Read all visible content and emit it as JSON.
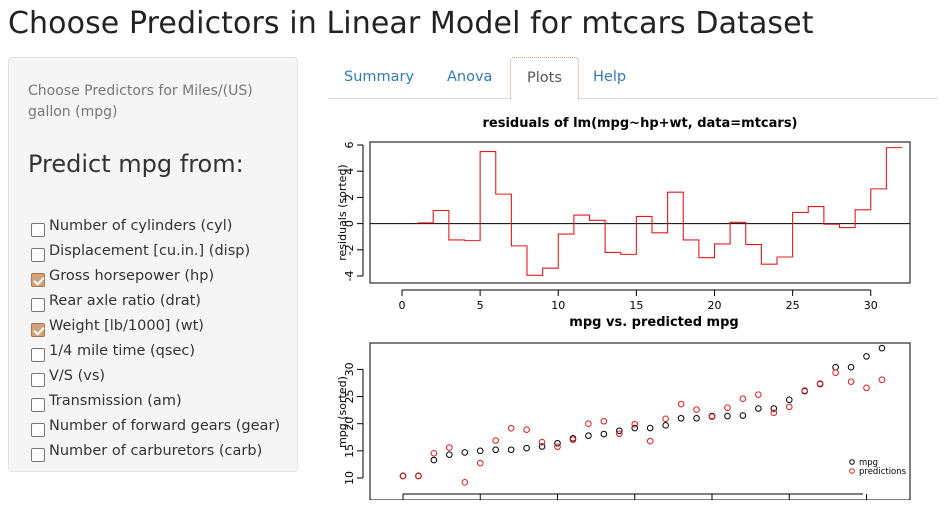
{
  "page": {
    "title": "Choose Predictors in Linear Model for mtcars Dataset"
  },
  "sidebar": {
    "label": "Choose Predictors for Miles/(US) gallon (mpg)",
    "heading": "Predict mpg from:",
    "options": [
      {
        "label": "Number of cylinders (cyl)",
        "checked": false
      },
      {
        "label": "Displacement [cu.in.] (disp)",
        "checked": false
      },
      {
        "label": "Gross horsepower (hp)",
        "checked": true
      },
      {
        "label": "Rear axle ratio (drat)",
        "checked": false
      },
      {
        "label": "Weight [lb/1000] (wt)",
        "checked": true
      },
      {
        "label": "1/4 mile time (qsec)",
        "checked": false
      },
      {
        "label": "V/S (vs)",
        "checked": false
      },
      {
        "label": "Transmission (am)",
        "checked": false
      },
      {
        "label": "Number of forward gears (gear)",
        "checked": false
      },
      {
        "label": "Number of carburetors (carb)",
        "checked": false
      }
    ]
  },
  "tabs": [
    {
      "label": "Summary",
      "active": false
    },
    {
      "label": "Anova",
      "active": false
    },
    {
      "label": "Plots",
      "active": true
    },
    {
      "label": "Help",
      "active": false
    }
  ],
  "chart_data": [
    {
      "type": "line",
      "style": "step",
      "title": "residuals of lm(mpg~hp+wt, data=mtcars)",
      "xlabel": "",
      "ylabel": "residuals (sorted)",
      "xlim": [
        0,
        32
      ],
      "ylim": [
        -4,
        6
      ],
      "xticks": [
        0,
        5,
        10,
        15,
        20,
        25,
        30
      ],
      "yticks": [
        -4,
        -2,
        0,
        2,
        4,
        6
      ],
      "hline": 0,
      "line_color": "#e41a1c",
      "series": [
        {
          "values": [
            0.05,
            1.0,
            -1.25,
            -1.3,
            5.5,
            2.25,
            -1.7,
            -3.95,
            -3.4,
            -0.8,
            0.65,
            0.25,
            -2.2,
            -2.35,
            0.55,
            -0.7,
            2.4,
            -1.25,
            -2.6,
            -1.55,
            0.1,
            -1.6,
            -3.1,
            -2.55,
            0.85,
            1.3,
            -0.05,
            -0.3,
            1.05,
            2.65,
            5.8,
            5.8
          ]
        }
      ],
      "grid": false
    },
    {
      "type": "scatter",
      "title": "mpg vs. predicted mpg",
      "xlabel": "",
      "ylabel": "mpg (sorted)",
      "ylim": [
        10,
        34
      ],
      "yticks": [
        10,
        15,
        20,
        25,
        30
      ],
      "x": [
        1,
        2,
        3,
        4,
        5,
        6,
        7,
        8,
        9,
        10,
        11,
        12,
        13,
        14,
        15,
        16,
        17,
        18,
        19,
        20,
        21,
        22,
        23,
        24,
        25,
        26,
        27,
        28,
        29,
        30,
        31,
        32
      ],
      "series": [
        {
          "name": "mpg",
          "color": "#000000",
          "values": [
            10.4,
            10.4,
            13.3,
            14.3,
            14.7,
            15.0,
            15.2,
            15.2,
            15.5,
            15.8,
            16.4,
            17.3,
            17.8,
            18.1,
            18.7,
            19.2,
            19.2,
            19.7,
            21.0,
            21.0,
            21.4,
            21.4,
            21.5,
            22.8,
            22.8,
            24.4,
            26.0,
            27.3,
            30.4,
            30.4,
            32.4,
            33.9
          ]
        },
        {
          "name": "predictions",
          "color": "#e41a1c",
          "values": [
            10.35,
            10.35,
            14.55,
            15.6,
            9.2,
            12.75,
            16.9,
            19.15,
            18.9,
            16.6,
            15.75,
            17.05,
            20.0,
            20.45,
            18.15,
            19.9,
            16.8,
            20.9,
            23.6,
            22.6,
            21.3,
            22.95,
            24.6,
            25.35,
            22.0,
            23.1,
            26.1,
            27.4,
            29.4,
            27.75,
            26.6,
            28.1
          ]
        }
      ],
      "legend": "bottom-right",
      "grid": false
    }
  ]
}
